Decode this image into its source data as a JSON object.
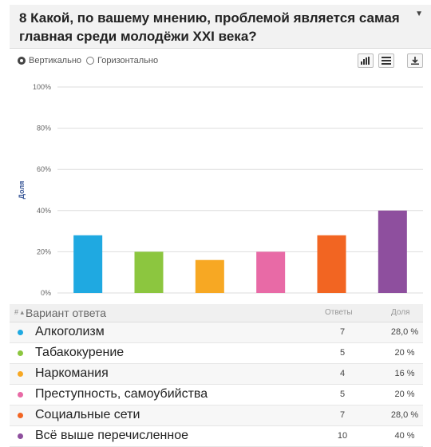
{
  "question": {
    "title": "8 Какой, по вашему мнению, проблемой является самая главная среди молодёжи XXI века?"
  },
  "controls": {
    "vertical_label": "Вертикально",
    "horizontal_label": "Горизонтально",
    "selected": "vertical"
  },
  "icons": [
    "bar-chart-icon",
    "table-view-icon",
    "download-icon"
  ],
  "chart_data": {
    "type": "bar",
    "ylabel": "Доля",
    "ylim": [
      0,
      100
    ],
    "yticks": [
      "0%",
      "20%",
      "40%",
      "60%",
      "80%",
      "100%"
    ],
    "categories": [
      "Алкоголизм",
      "Табакокурение",
      "Наркомания",
      "Преступность, самоубийства",
      "Социальные сети",
      "Всё выше перечисленное"
    ],
    "values": [
      28,
      20,
      16,
      20,
      28,
      40
    ],
    "colors": [
      "#1fa9e1",
      "#8cc63f",
      "#f7a823",
      "#e86aa6",
      "#f26522",
      "#8e4f9e"
    ],
    "grid": true
  },
  "table": {
    "sort_icon": "# ▴",
    "col_option": "Вариант ответа",
    "col_count": "Ответы",
    "col_share": "Доля",
    "rows": [
      {
        "label": "Алкоголизм",
        "count": "7",
        "share": "28,0 %",
        "color": "#1fa9e1"
      },
      {
        "label": "Табакокурение",
        "count": "5",
        "share": "20 %",
        "color": "#8cc63f"
      },
      {
        "label": "Наркомания",
        "count": "4",
        "share": "16 %",
        "color": "#f7a823"
      },
      {
        "label": "Преступность, самоубийства",
        "count": "5",
        "share": "20 %",
        "color": "#e86aa6"
      },
      {
        "label": "Социальные сети",
        "count": "7",
        "share": "28,0 %",
        "color": "#f26522"
      },
      {
        "label": "Всё выше перечисленное",
        "count": "10",
        "share": "40 %",
        "color": "#8e4f9e"
      }
    ]
  }
}
